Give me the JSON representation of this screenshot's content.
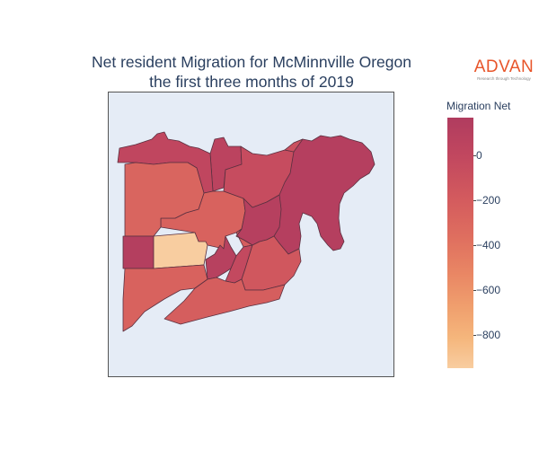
{
  "title": {
    "line1": "Net resident Migration for McMinnville Oregon",
    "line2": "the first three months of 2019"
  },
  "logo": {
    "word": "ADVAN",
    "tagline": "Research through Technology"
  },
  "colorbar": {
    "title": "Migration Net",
    "range": [
      -950,
      170
    ],
    "colors": {
      "high": "#b03c5f",
      "low": "#f8cda0"
    },
    "ticks": [
      {
        "value": 0,
        "label": "0"
      },
      {
        "value": -200,
        "label": "−200"
      },
      {
        "value": -400,
        "label": "−400"
      },
      {
        "value": -600,
        "label": "−600"
      },
      {
        "value": -800,
        "label": "−800"
      }
    ]
  },
  "chart_data": {
    "type": "choropleth",
    "title": "Net resident Migration for McMinnville Oregon the first three months of 2019",
    "colorbar_title": "Migration Net",
    "colorscale": "sunset (light = low, dark = high)",
    "regions": [
      {
        "id": "east-large",
        "value": 120
      },
      {
        "id": "north-central-small",
        "value": 60
      },
      {
        "id": "northwest-upper",
        "value": 10
      },
      {
        "id": "northeast-upper",
        "value": -40
      },
      {
        "id": "north-center",
        "value": -80
      },
      {
        "id": "central-west",
        "value": -230
      },
      {
        "id": "northwest-large",
        "value": -250
      },
      {
        "id": "central-vertical",
        "value": 110
      },
      {
        "id": "center-small",
        "value": -190
      },
      {
        "id": "west-small",
        "value": 130
      },
      {
        "id": "west-tan",
        "value": -950
      },
      {
        "id": "south-center-small",
        "value": 100
      },
      {
        "id": "south-center-inner",
        "value": -20
      },
      {
        "id": "southeast-mid",
        "value": -140
      },
      {
        "id": "southwest-large",
        "value": -230
      },
      {
        "id": "south-bottom",
        "value": -200
      }
    ]
  }
}
